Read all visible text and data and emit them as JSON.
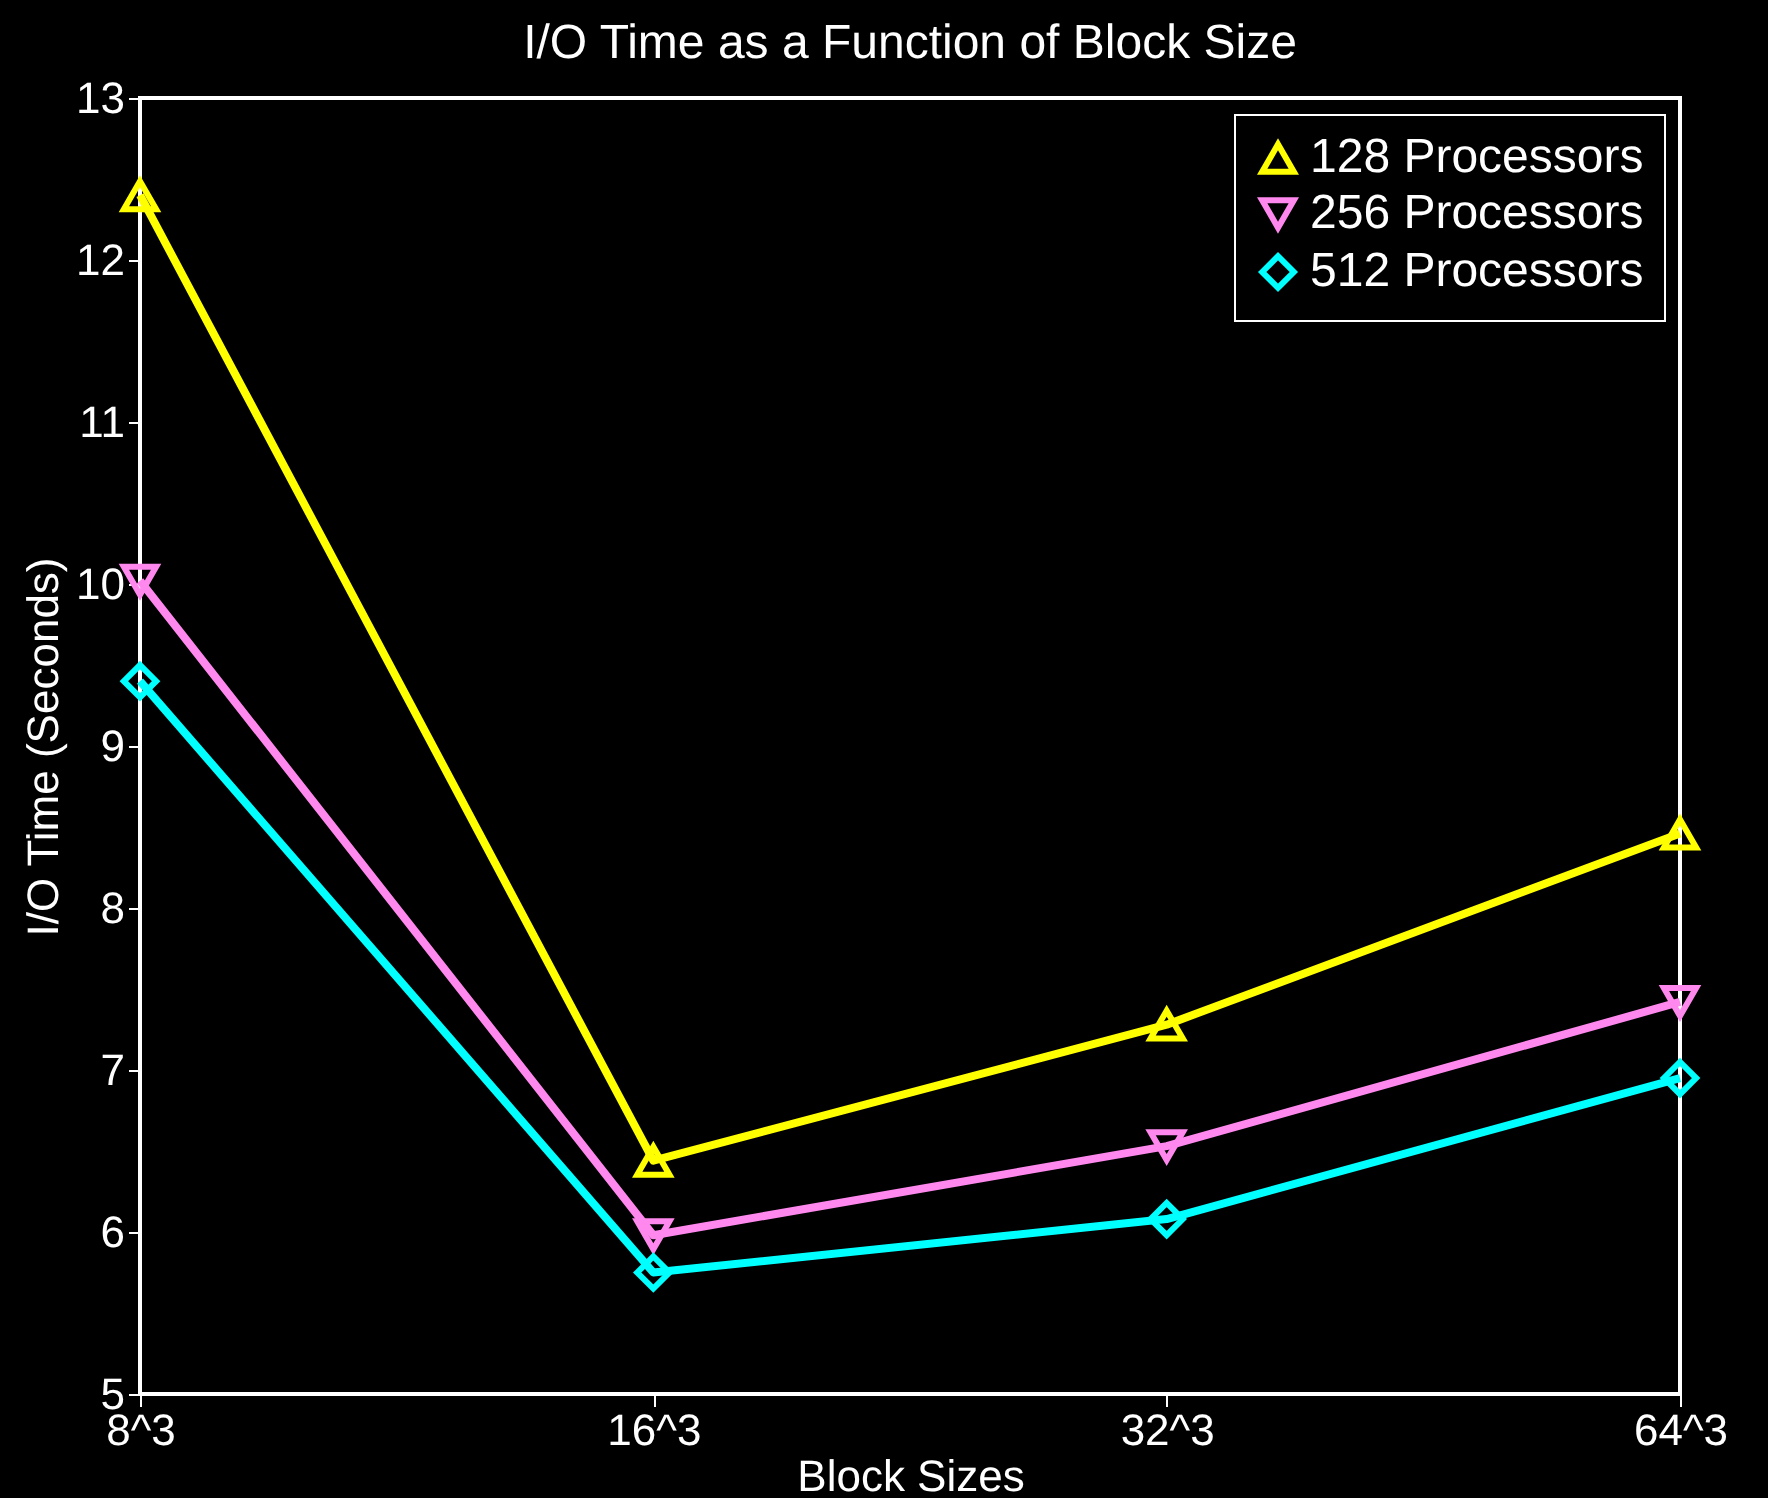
{
  "chart_data": {
    "type": "line",
    "title": "I/O Time as a Function of Block Size",
    "xlabel": "Block Sizes",
    "ylabel": "I/O Time (Seconds)",
    "categories": [
      "8^3",
      "16^3",
      "32^3",
      "64^3"
    ],
    "series": [
      {
        "name": "128 Processors",
        "color": "#ffff00",
        "marker": "triangle",
        "values": [
          12.4,
          6.44,
          7.28,
          8.46
        ]
      },
      {
        "name": "256 Processors",
        "color": "#ff88ee",
        "marker": "triangle-down",
        "values": [
          10.02,
          5.98,
          6.53,
          7.42
        ]
      },
      {
        "name": "512 Processors",
        "color": "#00ffff",
        "marker": "diamond",
        "values": [
          9.4,
          5.75,
          6.08,
          6.95
        ]
      }
    ],
    "ylim": [
      5,
      13
    ],
    "yticks": [
      5,
      6,
      7,
      8,
      9,
      10,
      11,
      12,
      13
    ],
    "grid": false,
    "legend": "top right",
    "line_style": "solid"
  }
}
